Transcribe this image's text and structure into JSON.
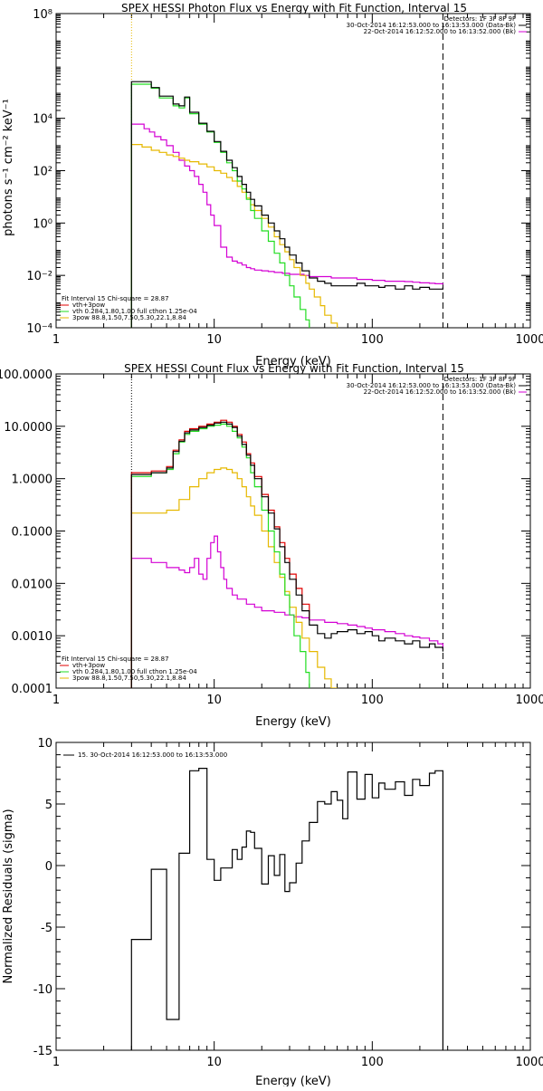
{
  "colors": {
    "total": "#000000",
    "fit_total": "#e00000",
    "vth": "#22dd22",
    "bpow": "#e6b800",
    "third": "#d400d4",
    "dashed": "#000000"
  },
  "chart_data": [
    {
      "type": "line",
      "title": "SPEX HESSI Photon Flux vs Energy with Fit Function, Interval 15",
      "xlabel": "Energy (keV)",
      "ylabel": "photons s⁻¹ cm⁻² keV⁻¹",
      "xlog": true,
      "ylog": true,
      "xlim": [
        1,
        1000
      ],
      "ylim": [
        0.0001,
        100000000
      ],
      "xticks": [
        {
          "v": 1,
          "t": "1"
        },
        {
          "v": 10,
          "t": "10"
        },
        {
          "v": 100,
          "t": "100"
        },
        {
          "v": 1000,
          "t": "1000"
        }
      ],
      "yticks": [
        {
          "v": 0.0001,
          "t": "10⁻⁴"
        },
        {
          "v": 0.01,
          "t": "10⁻²"
        },
        {
          "v": 1,
          "t": "10⁰"
        },
        {
          "v": 100,
          "t": "10²"
        },
        {
          "v": 10000,
          "t": "10⁴"
        },
        {
          "v": 100000000,
          "t": "10⁸"
        }
      ],
      "vlines": [
        {
          "x": 3,
          "color": "bpow",
          "style": "dotted"
        },
        {
          "x": 280,
          "color": "dashed",
          "style": "dashed"
        }
      ],
      "legend_top_right": [
        {
          "text": "Detectors: 1F 3F 8F 9F",
          "color": "total"
        },
        {
          "text": "30-Oct-2014 16:12:53.000 to 16:13:53.000 (Data-Bk)",
          "color": "total"
        },
        {
          "text": "22-Oct-2014 16:12:52.000 to 16:13:52.000 (Bk)",
          "color": "third"
        }
      ],
      "legend_bottom_left": [
        {
          "text": "Fit Interval 15   Chi-square = 28.87",
          "color": "total"
        },
        {
          "text": "vth+3pow",
          "color": "fit_total"
        },
        {
          "text": "vth 0.284,1.80,1.00  full cthon 1.25e-04",
          "color": "vth"
        },
        {
          "text": "3pow 88.8,1.50,7.50,5.30,22.1,8.84",
          "color": "bpow"
        }
      ],
      "series": [
        {
          "color": "third",
          "x": [
            3,
            3.3,
            3.6,
            3.9,
            4.2,
            4.6,
            5,
            5.5,
            6,
            6.5,
            7,
            7.5,
            8,
            8.5,
            9,
            9.5,
            10,
            11,
            12,
            13,
            14,
            15,
            16,
            17,
            18,
            20,
            22,
            24,
            27,
            30,
            33,
            37,
            40,
            45,
            50,
            55,
            60,
            70,
            80,
            90,
            100,
            120,
            140,
            160,
            180,
            200,
            230,
            250,
            280
          ],
          "y": [
            6000,
            6000,
            4000,
            3000,
            2000,
            1500,
            900,
            500,
            250,
            150,
            100,
            60,
            30,
            15,
            5,
            2,
            0.8,
            0.12,
            0.05,
            0.035,
            0.03,
            0.025,
            0.02,
            0.018,
            0.016,
            0.015,
            0.014,
            0.013,
            0.012,
            0.011,
            0.011,
            0.01,
            0.009,
            0.009,
            0.009,
            0.008,
            0.008,
            0.008,
            0.007,
            0.007,
            0.0065,
            0.006,
            0.006,
            0.0058,
            0.0055,
            0.0052,
            0.005,
            0.0048,
            0.0045
          ]
        },
        {
          "color": "bpow",
          "x": [
            3,
            3.5,
            4,
            4.5,
            5,
            5.5,
            6,
            6.5,
            7,
            8,
            9,
            10,
            11,
            12,
            13,
            14,
            15,
            16,
            17,
            18,
            20,
            22,
            24,
            26,
            28,
            30,
            32,
            35,
            38,
            40,
            43,
            47,
            50,
            55,
            60
          ],
          "y": [
            1000,
            800,
            600,
            500,
            400,
            350,
            300,
            250,
            220,
            180,
            140,
            100,
            80,
            55,
            40,
            25,
            15,
            9,
            5,
            3,
            1.5,
            0.7,
            0.3,
            0.15,
            0.08,
            0.04,
            0.02,
            0.01,
            0.005,
            0.003,
            0.0015,
            0.0007,
            0.0003,
            0.00015,
            0.0001
          ]
        },
        {
          "color": "vth",
          "x": [
            3,
            3.5,
            4,
            4.5,
            5,
            5.5,
            6,
            6.5,
            7,
            8,
            9,
            10,
            11,
            12,
            13,
            14,
            15,
            16,
            17,
            18,
            20,
            22,
            24,
            26,
            28,
            30,
            32,
            35,
            38,
            40
          ],
          "y": [
            200000,
            200000,
            140000,
            60000,
            60000,
            30000,
            25000,
            60000,
            15000,
            6000,
            3000,
            1200,
            500,
            200,
            100,
            40,
            20,
            8,
            3,
            1.5,
            0.5,
            0.2,
            0.07,
            0.03,
            0.01,
            0.004,
            0.0015,
            0.0005,
            0.0002,
            0.0001
          ]
        },
        {
          "color": "total",
          "x": [
            3,
            3.5,
            4,
            4.5,
            5,
            5.5,
            6,
            6.5,
            7,
            8,
            9,
            10,
            11,
            12,
            13,
            14,
            15,
            16,
            17,
            18,
            20,
            22,
            24,
            26,
            28,
            30,
            33,
            36,
            40,
            45,
            50,
            55,
            60,
            65,
            70,
            80,
            90,
            100,
            110,
            120,
            140,
            160,
            180,
            200,
            230,
            250,
            280
          ],
          "y": [
            250000,
            250000,
            150000,
            70000,
            70000,
            35000,
            30000,
            65000,
            17000,
            6500,
            3200,
            1300,
            550,
            250,
            130,
            60,
            30,
            15,
            8,
            4.5,
            2,
            1,
            0.5,
            0.25,
            0.12,
            0.06,
            0.03,
            0.015,
            0.008,
            0.006,
            0.005,
            0.004,
            0.004,
            0.004,
            0.004,
            0.005,
            0.004,
            0.004,
            0.0035,
            0.004,
            0.003,
            0.004,
            0.003,
            0.0035,
            0.003,
            0.003,
            0.0035
          ]
        }
      ]
    },
    {
      "type": "line",
      "title": "SPEX HESSI Count Flux vs Energy with Fit Function, Interval 15",
      "xlabel": "Energy (keV)",
      "ylabel": "",
      "xlog": true,
      "ylog": true,
      "xlim": [
        1,
        1000
      ],
      "ylim": [
        0.0001,
        100
      ],
      "xticks": [
        {
          "v": 1,
          "t": "1"
        },
        {
          "v": 10,
          "t": "10"
        },
        {
          "v": 100,
          "t": "100"
        },
        {
          "v": 1000,
          "t": "1000"
        }
      ],
      "yticks": [
        {
          "v": 0.0001,
          "t": "0.0001"
        },
        {
          "v": 0.001,
          "t": "0.0010"
        },
        {
          "v": 0.01,
          "t": "0.0100"
        },
        {
          "v": 0.1,
          "t": "0.1000"
        },
        {
          "v": 1,
          "t": "1.0000"
        },
        {
          "v": 10,
          "t": "10.0000"
        },
        {
          "v": 100,
          "t": "100.0000"
        }
      ],
      "vlines": [
        {
          "x": 3,
          "color": "total",
          "style": "dotted"
        },
        {
          "x": 280,
          "color": "dashed",
          "style": "dashed"
        }
      ],
      "legend_top_right": [
        {
          "text": "Detectors: 1F 3F 8F 9F",
          "color": "total"
        },
        {
          "text": "30-Oct-2014 16:12:53.000 to 16:13:53.000 (Data-Bk)",
          "color": "total"
        },
        {
          "text": "22-Oct-2014 16:12:52.000 to 16:13:52.000 (Bk)",
          "color": "third"
        }
      ],
      "legend_bottom_left": [
        {
          "text": "Fit Interval 15   Chi-square = 28.87",
          "color": "total"
        },
        {
          "text": "vth+3pow",
          "color": "fit_total"
        },
        {
          "text": "vth 0.284,1.80,1.00  full cthon 1.25e-04",
          "color": "vth"
        },
        {
          "text": "3pow 88.8,1.50,7.50,5.30,22.1,8.84",
          "color": "bpow"
        }
      ],
      "series": [
        {
          "color": "third",
          "x": [
            3,
            4,
            5,
            6,
            6.5,
            7,
            7.5,
            8,
            8.5,
            9,
            9.5,
            10,
            10.5,
            11,
            11.5,
            12,
            13,
            14,
            16,
            18,
            20,
            24,
            28,
            32,
            36,
            40,
            50,
            60,
            70,
            80,
            90,
            100,
            120,
            140,
            160,
            180,
            200,
            230,
            260,
            280
          ],
          "y": [
            0.03,
            0.025,
            0.02,
            0.018,
            0.016,
            0.02,
            0.03,
            0.015,
            0.012,
            0.03,
            0.06,
            0.08,
            0.04,
            0.02,
            0.012,
            0.008,
            0.006,
            0.005,
            0.004,
            0.0035,
            0.003,
            0.0028,
            0.0025,
            0.0023,
            0.0022,
            0.002,
            0.0018,
            0.0017,
            0.0016,
            0.0015,
            0.0014,
            0.0013,
            0.0012,
            0.0011,
            0.001,
            0.00095,
            0.0009,
            0.0008,
            0.0007,
            0.00055
          ]
        },
        {
          "color": "bpow",
          "x": [
            3,
            4,
            5,
            6,
            7,
            8,
            9,
            10,
            11,
            12,
            13,
            14,
            15,
            16,
            17,
            18,
            20,
            22,
            24,
            26,
            28,
            30,
            33,
            36,
            40,
            45,
            50,
            55,
            60
          ],
          "y": [
            0.22,
            0.22,
            0.25,
            0.4,
            0.7,
            1,
            1.3,
            1.5,
            1.6,
            1.5,
            1.3,
            1,
            0.7,
            0.45,
            0.3,
            0.2,
            0.1,
            0.05,
            0.025,
            0.013,
            0.007,
            0.0035,
            0.0018,
            0.0009,
            0.0005,
            0.00025,
            0.00015,
            0.0001,
            0.0001
          ]
        },
        {
          "color": "vth",
          "x": [
            3,
            4,
            5,
            5.5,
            6,
            6.5,
            7,
            8,
            9,
            10,
            11,
            12,
            13,
            14,
            15,
            16,
            17,
            18,
            20,
            22,
            24,
            26,
            28,
            30,
            32,
            35,
            38,
            40
          ],
          "y": [
            1.1,
            1.3,
            1.5,
            3,
            5,
            7,
            8,
            9,
            10,
            10.5,
            11,
            10,
            8,
            6,
            4,
            2.5,
            1.3,
            0.7,
            0.25,
            0.1,
            0.04,
            0.015,
            0.006,
            0.0025,
            0.001,
            0.0005,
            0.0002,
            0.0001
          ]
        },
        {
          "color": "fit_total",
          "x": [
            3,
            4,
            5,
            5.5,
            6,
            6.5,
            7,
            8,
            9,
            10,
            11,
            12,
            13,
            14,
            15,
            16,
            17,
            18,
            20,
            22,
            24,
            26,
            28,
            30,
            33,
            36,
            40
          ],
          "y": [
            1.3,
            1.4,
            1.7,
            3.5,
            5.5,
            8,
            9,
            10,
            11,
            12,
            13,
            12,
            10,
            7,
            5,
            3,
            2,
            1.1,
            0.5,
            0.25,
            0.12,
            0.06,
            0.03,
            0.015,
            0.008,
            0.004,
            0.002
          ]
        },
        {
          "color": "total",
          "x": [
            3,
            4,
            5,
            5.5,
            6,
            6.5,
            7,
            8,
            9,
            10,
            11,
            12,
            13,
            14,
            15,
            16,
            17,
            18,
            20,
            22,
            24,
            26,
            28,
            30,
            33,
            36,
            40,
            45,
            50,
            55,
            60,
            70,
            80,
            90,
            100,
            110,
            120,
            140,
            160,
            180,
            200,
            230,
            250,
            280
          ],
          "y": [
            1.2,
            1.3,
            1.6,
            3.3,
            5.2,
            7.5,
            8.5,
            9.5,
            10.5,
            11.5,
            12,
            11,
            9.5,
            6.5,
            4.5,
            2.8,
            1.8,
            1,
            0.45,
            0.22,
            0.11,
            0.05,
            0.025,
            0.012,
            0.006,
            0.003,
            0.0016,
            0.0011,
            0.0009,
            0.0011,
            0.0012,
            0.0013,
            0.0011,
            0.0012,
            0.001,
            0.0008,
            0.0009,
            0.0008,
            0.0007,
            0.0008,
            0.0006,
            0.0007,
            0.0006,
            0.0005
          ]
        }
      ]
    },
    {
      "type": "line",
      "title": "",
      "xlabel": "Energy (keV)",
      "ylabel": "Normalized Residuals (sigma)",
      "xlog": true,
      "ylog": false,
      "xlim": [
        1,
        1000
      ],
      "ylim": [
        -15,
        10
      ],
      "xticks": [
        {
          "v": 1,
          "t": "1"
        },
        {
          "v": 10,
          "t": "10"
        },
        {
          "v": 100,
          "t": "100"
        },
        {
          "v": 1000,
          "t": "1000"
        }
      ],
      "yticks": [
        {
          "v": -15,
          "t": "-15"
        },
        {
          "v": -10,
          "t": "-10"
        },
        {
          "v": -5,
          "t": "-5"
        },
        {
          "v": 0,
          "t": "0"
        },
        {
          "v": 5,
          "t": "5"
        },
        {
          "v": 10,
          "t": "10"
        }
      ],
      "vlines": [],
      "legend_top_left": [
        {
          "text": "15. 30-Oct-2014 16:12:53.000 to 16:13:53.000",
          "color": "total"
        }
      ],
      "series": [
        {
          "color": "total",
          "step": true,
          "x": [
            3,
            4,
            5,
            6,
            7,
            8,
            9,
            10,
            11,
            12,
            13,
            14,
            15,
            16,
            17,
            18,
            20,
            22,
            24,
            26,
            28,
            30,
            33,
            36,
            40,
            45,
            50,
            55,
            60,
            65,
            70,
            80,
            90,
            100,
            110,
            120,
            140,
            160,
            180,
            200,
            230,
            250,
            280
          ],
          "y": [
            -6,
            -0.3,
            -12.5,
            1,
            7.7,
            7.9,
            0.5,
            -1.2,
            -0.2,
            -0.2,
            1.3,
            0.5,
            1.5,
            2.8,
            2.7,
            1.4,
            -1.5,
            0.8,
            -0.8,
            0.9,
            -2.1,
            -1.4,
            0.2,
            2,
            3.5,
            5.2,
            5,
            6,
            5.3,
            3.8,
            7.6,
            5.4,
            7.4,
            5.5,
            6.7,
            6.2,
            6.8,
            5.7,
            7,
            6.5,
            7.5,
            7.7,
            7.7
          ]
        }
      ]
    }
  ]
}
